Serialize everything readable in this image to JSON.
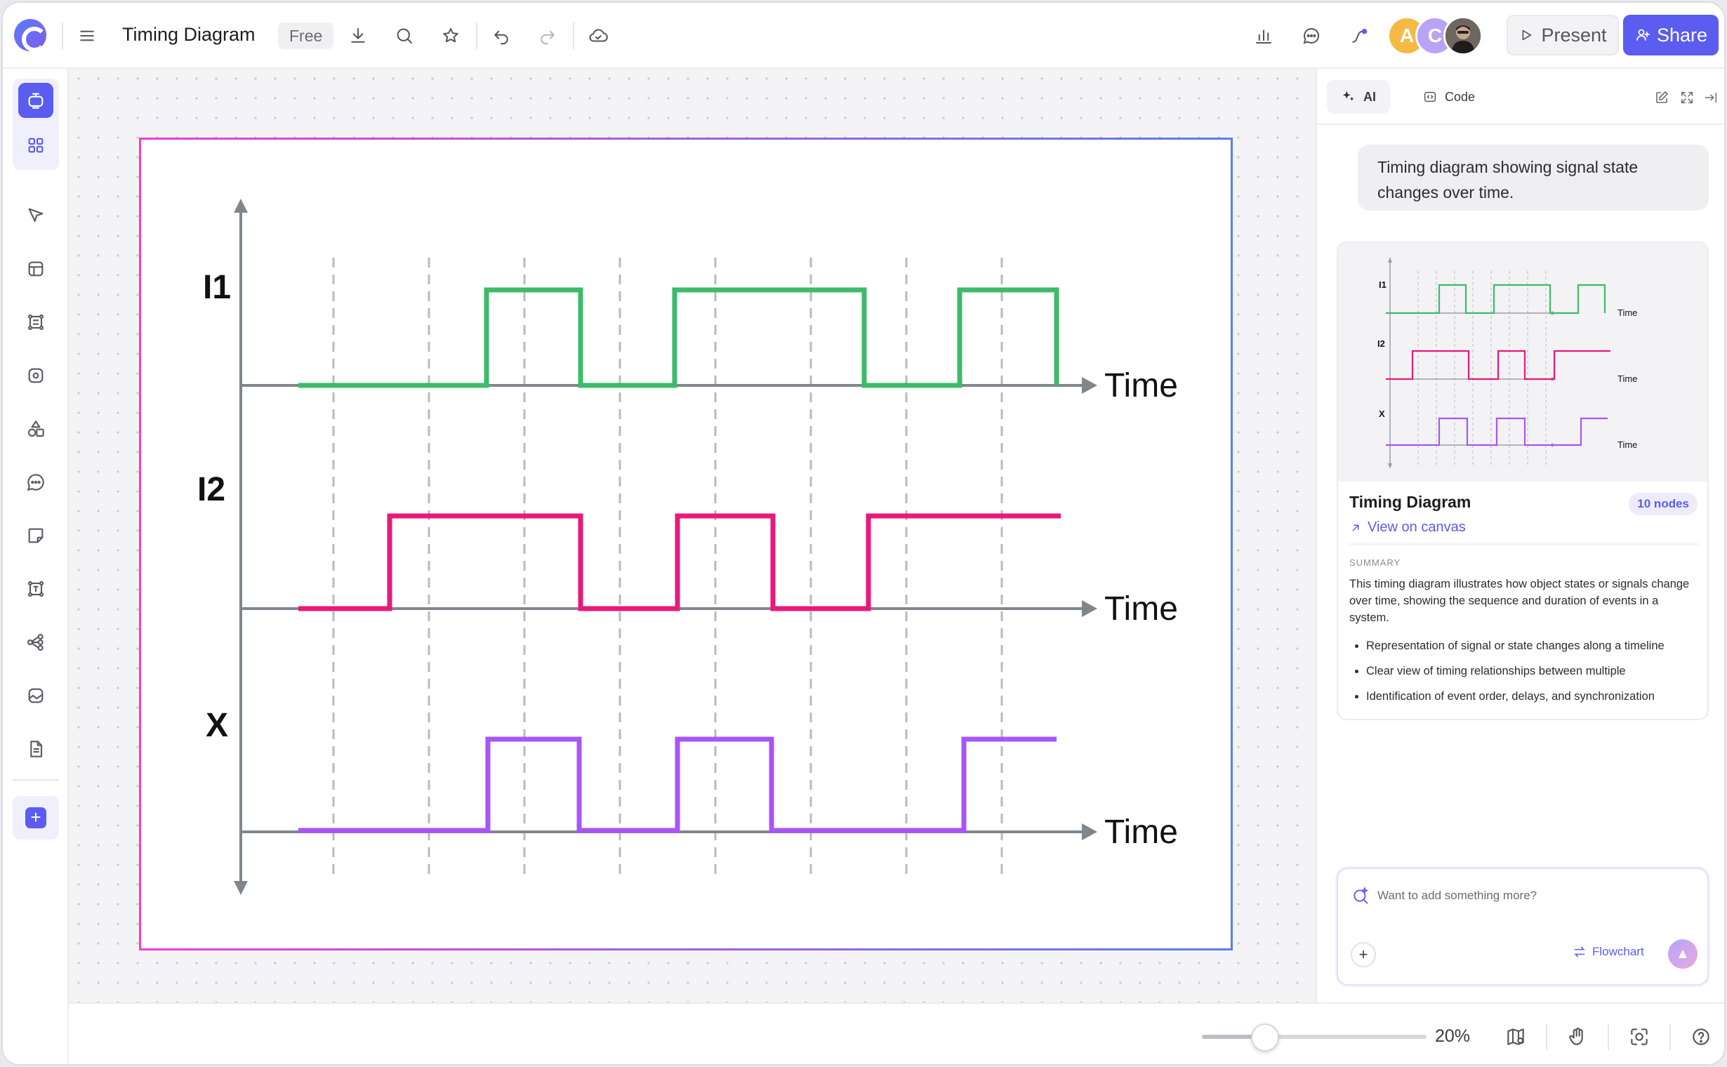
{
  "app": {
    "title": "Timing Diagram",
    "plan_badge": "Free",
    "avatars": [
      {
        "initial": "A",
        "color": "#f5b945"
      },
      {
        "initial": "C",
        "color": "#b8a3f5"
      }
    ],
    "present_label": "Present",
    "share_label": "Share",
    "accent": "#5b5cf0"
  },
  "diagram": {
    "signal_labels": [
      "I1",
      "I2",
      "X"
    ],
    "axis_label": "Time",
    "colors": {
      "I1": "#3dbb6a",
      "I2": "#e8197a",
      "X": "#a855f7",
      "axis": "#80868d",
      "grid": "#b9b9bf"
    }
  },
  "panel": {
    "tabs": [
      {
        "label": "AI",
        "active": true
      },
      {
        "label": "Code",
        "active": false
      }
    ],
    "prompt_text": "Timing diagram showing signal state changes over time.",
    "card": {
      "title": "Timing Diagram",
      "nodes_badge": "10 nodes",
      "view_link": "View on canvas",
      "summary_label": "SUMMARY",
      "summary_text": "This timing diagram illustrates how object states or signals change over time, showing the sequence and duration of events in a system.",
      "bullets": [
        "Representation of signal or state changes along a timeline",
        "Clear view of timing relationships between multiple",
        "Identification of event order, delays, and synchronization"
      ],
      "thumbnail": {
        "labels": [
          "I1",
          "I2",
          "X"
        ],
        "axis_label": "Time"
      }
    },
    "chat": {
      "placeholder": "Want to add something more?",
      "mode_label": "Flowchart"
    }
  },
  "bottom": {
    "zoom_label": "20%",
    "zoom_value": 20
  }
}
